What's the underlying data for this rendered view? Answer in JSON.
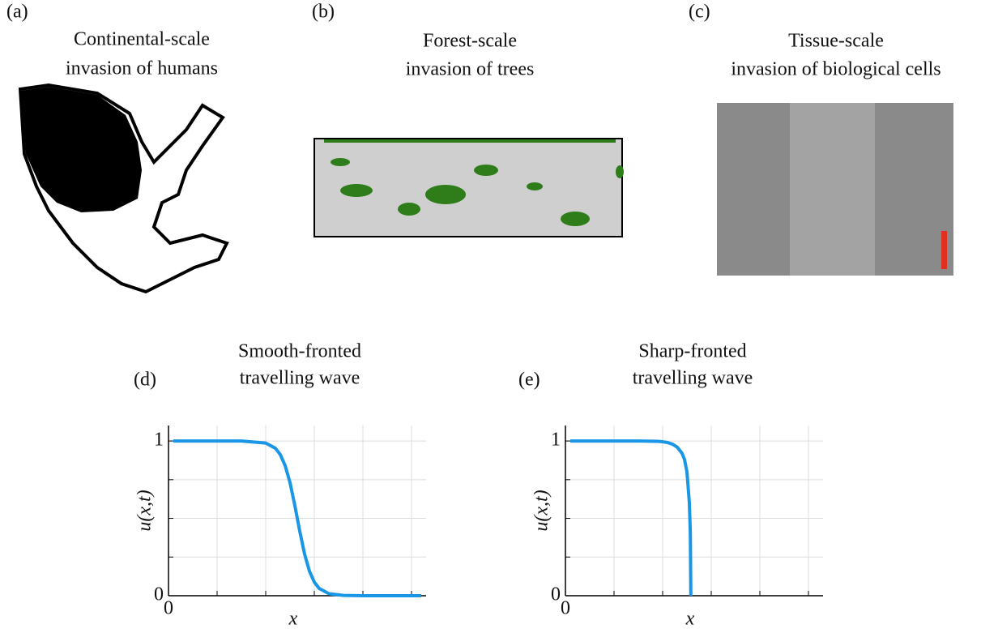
{
  "panels": [
    {
      "label": "(a)",
      "title": [
        "Continental-scale",
        "invasion of humans"
      ]
    },
    {
      "label": "(b)",
      "title": [
        "Forest-scale",
        "invasion of trees"
      ]
    },
    {
      "label": "(c)",
      "title": [
        "Tissue-scale",
        "invasion of biological cells"
      ]
    }
  ],
  "chart_data": [
    {
      "type": "line",
      "panel_label": "(d)",
      "title": [
        "Smooth-fronted",
        "travelling wave"
      ],
      "x_label": "x",
      "y_label": "u(x,t)",
      "xlim": [
        0,
        5.3
      ],
      "ylim": [
        0,
        1.1
      ],
      "xticks": [
        0
      ],
      "yticks": [
        0,
        1
      ],
      "xgrid": [
        1,
        2,
        3,
        4,
        5
      ],
      "ygrid": [
        0.25,
        0.5,
        0.75,
        1
      ],
      "grid": true,
      "x": [
        0.1,
        0.5,
        1.0,
        1.5,
        2.0,
        2.2,
        2.3,
        2.4,
        2.5,
        2.6,
        2.65,
        2.7,
        2.8,
        2.9,
        3.0,
        3.1,
        3.3,
        3.6,
        4.0,
        4.5,
        5.2
      ],
      "series": [
        {
          "color": "#1a96e6",
          "values": [
            1,
            1,
            1,
            1,
            0.987,
            0.953,
            0.912,
            0.841,
            0.731,
            0.582,
            0.5,
            0.418,
            0.269,
            0.159,
            0.088,
            0.047,
            0.013,
            0.002,
            0,
            0,
            0
          ]
        }
      ]
    },
    {
      "type": "line",
      "panel_label": "(e)",
      "title": [
        "Sharp-fronted",
        "travelling wave"
      ],
      "x_label": "x",
      "y_label": "u(x,t)",
      "xlim": [
        0,
        5.3
      ],
      "ylim": [
        0,
        1.1
      ],
      "xticks": [
        0
      ],
      "yticks": [
        0,
        1
      ],
      "xgrid": [
        1,
        2,
        3,
        4,
        5
      ],
      "ygrid": [
        0.25,
        0.5,
        0.75,
        1
      ],
      "grid": true,
      "x": [
        0.1,
        0.5,
        1.0,
        1.5,
        1.9,
        2.0,
        2.1,
        2.2,
        2.3,
        2.4,
        2.45,
        2.5,
        2.55,
        2.57,
        2.58
      ],
      "series": [
        {
          "color": "#1a96e6",
          "values": [
            1,
            1,
            1,
            1,
            0.998,
            0.995,
            0.99,
            0.98,
            0.96,
            0.92,
            0.88,
            0.8,
            0.6,
            0.4,
            0
          ]
        }
      ]
    }
  ]
}
